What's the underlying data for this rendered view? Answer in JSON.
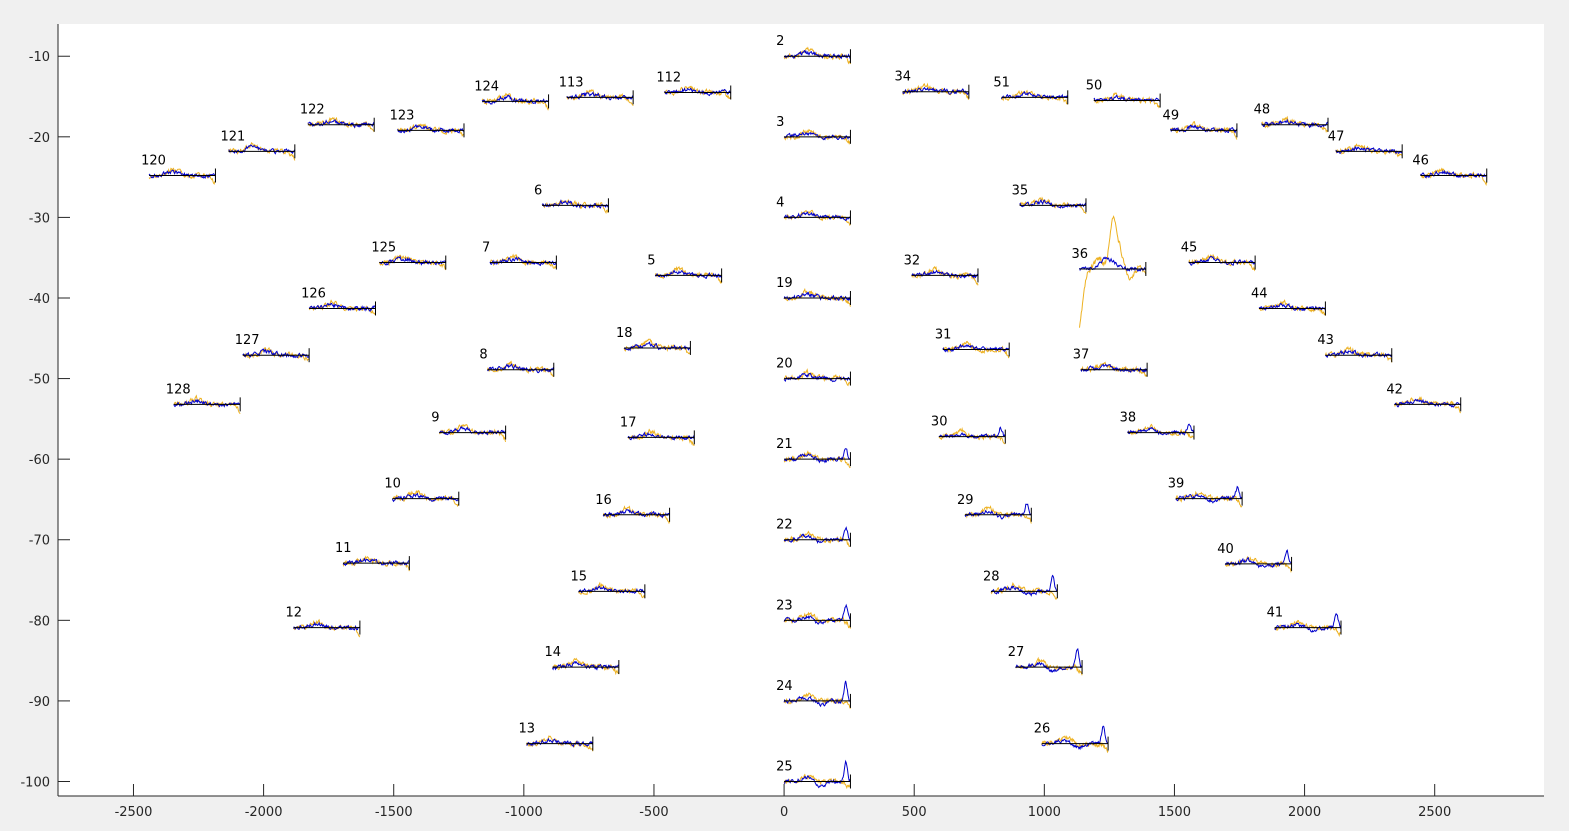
{
  "chart_data": {
    "type": "line",
    "title": "",
    "xlabel": "",
    "ylabel": "",
    "xlim": [
      -2790,
      2920
    ],
    "ylim": [
      -101.8,
      -6
    ],
    "xticks": [
      -2500,
      -2000,
      -1500,
      -1000,
      -500,
      0,
      500,
      1000,
      1500,
      2000,
      2500
    ],
    "yticks": [
      -10,
      -20,
      -30,
      -40,
      -50,
      -60,
      -70,
      -80,
      -90,
      -100
    ],
    "grid": false,
    "trace_x_span": 255,
    "colors": {
      "series_a": "#edb120",
      "series_b": "#0000cc",
      "baseline": "#000000",
      "plot_bg": "#ffffff",
      "figure_bg": "#f0f0f0"
    },
    "traces": [
      {
        "label": "2",
        "x": 0,
        "y": -10
      },
      {
        "label": "3",
        "x": 0,
        "y": -20
      },
      {
        "label": "4",
        "x": 0,
        "y": -30
      },
      {
        "label": "19",
        "x": 0,
        "y": -40
      },
      {
        "label": "20",
        "x": 0,
        "y": -50
      },
      {
        "label": "21",
        "x": 0,
        "y": -60
      },
      {
        "label": "22",
        "x": 0,
        "y": -70
      },
      {
        "label": "23",
        "x": 0,
        "y": -80
      },
      {
        "label": "24",
        "x": 0,
        "y": -90
      },
      {
        "label": "25",
        "x": 0,
        "y": -100
      },
      {
        "label": "120",
        "x": -2440,
        "y": -24.8
      },
      {
        "label": "121",
        "x": -2135,
        "y": -21.8
      },
      {
        "label": "122",
        "x": -1830,
        "y": -18.5
      },
      {
        "label": "123",
        "x": -1485,
        "y": -19.2
      },
      {
        "label": "124",
        "x": -1160,
        "y": -15.6
      },
      {
        "label": "113",
        "x": -835,
        "y": -15.1
      },
      {
        "label": "112",
        "x": -460,
        "y": -14.5
      },
      {
        "label": "6",
        "x": -930,
        "y": -28.5
      },
      {
        "label": "7",
        "x": -1130,
        "y": -35.6
      },
      {
        "label": "5",
        "x": -495,
        "y": -37.2
      },
      {
        "label": "125",
        "x": -1555,
        "y": -35.6
      },
      {
        "label": "126",
        "x": -1825,
        "y": -41.3
      },
      {
        "label": "127",
        "x": -2080,
        "y": -47.1
      },
      {
        "label": "128",
        "x": -2345,
        "y": -53.2
      },
      {
        "label": "8",
        "x": -1140,
        "y": -48.9
      },
      {
        "label": "18",
        "x": -615,
        "y": -46.2
      },
      {
        "label": "9",
        "x": -1325,
        "y": -56.7
      },
      {
        "label": "17",
        "x": -600,
        "y": -57.3
      },
      {
        "label": "10",
        "x": -1505,
        "y": -64.9
      },
      {
        "label": "16",
        "x": -695,
        "y": -66.9
      },
      {
        "label": "11",
        "x": -1695,
        "y": -72.9
      },
      {
        "label": "15",
        "x": -790,
        "y": -76.4
      },
      {
        "label": "12",
        "x": -1885,
        "y": -80.9
      },
      {
        "label": "14",
        "x": -890,
        "y": -85.8
      },
      {
        "label": "13",
        "x": -990,
        "y": -95.3
      },
      {
        "label": "34",
        "x": 455,
        "y": -14.4
      },
      {
        "label": "51",
        "x": 835,
        "y": -15.1
      },
      {
        "label": "50",
        "x": 1190,
        "y": -15.5
      },
      {
        "label": "49",
        "x": 1485,
        "y": -19.2
      },
      {
        "label": "48",
        "x": 1835,
        "y": -18.5
      },
      {
        "label": "47",
        "x": 2120,
        "y": -21.8
      },
      {
        "label": "46",
        "x": 2445,
        "y": -24.8
      },
      {
        "label": "35",
        "x": 905,
        "y": -28.5
      },
      {
        "label": "36",
        "x": 1135,
        "y": -36.4
      },
      {
        "label": "45",
        "x": 1555,
        "y": -35.6
      },
      {
        "label": "32",
        "x": 490,
        "y": -37.2
      },
      {
        "label": "44",
        "x": 1825,
        "y": -41.3
      },
      {
        "label": "31",
        "x": 610,
        "y": -46.4
      },
      {
        "label": "37",
        "x": 1140,
        "y": -48.9
      },
      {
        "label": "43",
        "x": 2080,
        "y": -47.1
      },
      {
        "label": "42",
        "x": 2345,
        "y": -53.2
      },
      {
        "label": "30",
        "x": 595,
        "y": -57.2
      },
      {
        "label": "38",
        "x": 1320,
        "y": -56.7
      },
      {
        "label": "29",
        "x": 695,
        "y": -66.9
      },
      {
        "label": "39",
        "x": 1505,
        "y": -64.9
      },
      {
        "label": "28",
        "x": 795,
        "y": -76.4
      },
      {
        "label": "40",
        "x": 1695,
        "y": -73.0
      },
      {
        "label": "27",
        "x": 890,
        "y": -85.8
      },
      {
        "label": "41",
        "x": 1885,
        "y": -80.9
      },
      {
        "label": "26",
        "x": 990,
        "y": -95.3
      }
    ]
  }
}
